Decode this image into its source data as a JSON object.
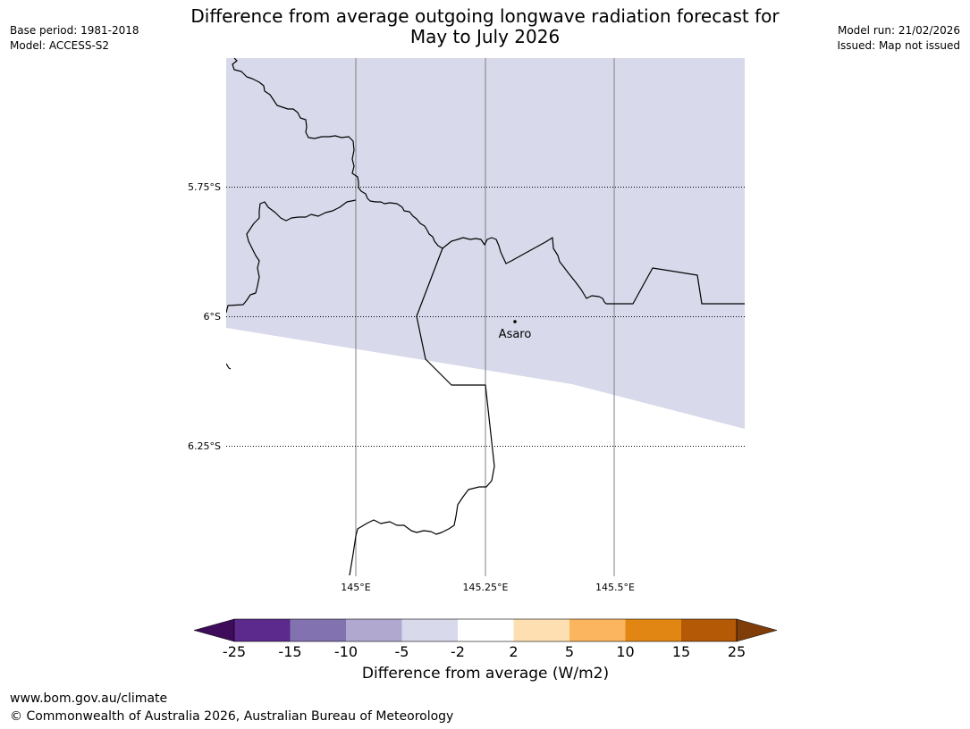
{
  "header": {
    "title_line1": "Difference from average outgoing longwave radiation forecast for",
    "title_line2": "May to July 2026",
    "base_period": "Base period: 1981-2018",
    "model": "Model: ACCESS-S2",
    "model_run": "Model run: 21/02/2026",
    "issued": "Issued: Map not issued"
  },
  "map": {
    "lat_labels": [
      "5.75°S",
      "6°S",
      "6.25°S"
    ],
    "lon_labels": [
      "145°E",
      "145.25°E",
      "145.5°E"
    ],
    "place": {
      "name": "Asaro"
    },
    "colors": {
      "fill": "#d8d9ea",
      "coast": "#000000",
      "grid": "#808080"
    }
  },
  "legend": {
    "title": "Difference from average (W/m2)",
    "tick_labels": [
      "-25",
      "-15",
      "-10",
      "-5",
      "-2",
      "2",
      "5",
      "10",
      "15",
      "25"
    ],
    "colors": [
      "#3f0b5b",
      "#5b2a8c",
      "#8272b0",
      "#b1a8d0",
      "#d8d9ea",
      "#ffffff",
      "#fedfb1",
      "#fbb55f",
      "#e28613",
      "#b45906",
      "#7f3d0a"
    ]
  },
  "footer": {
    "url": "www.bom.gov.au/climate",
    "copyright": "© Commonwealth of Australia 2026, Australian Bureau of Meteorology"
  }
}
